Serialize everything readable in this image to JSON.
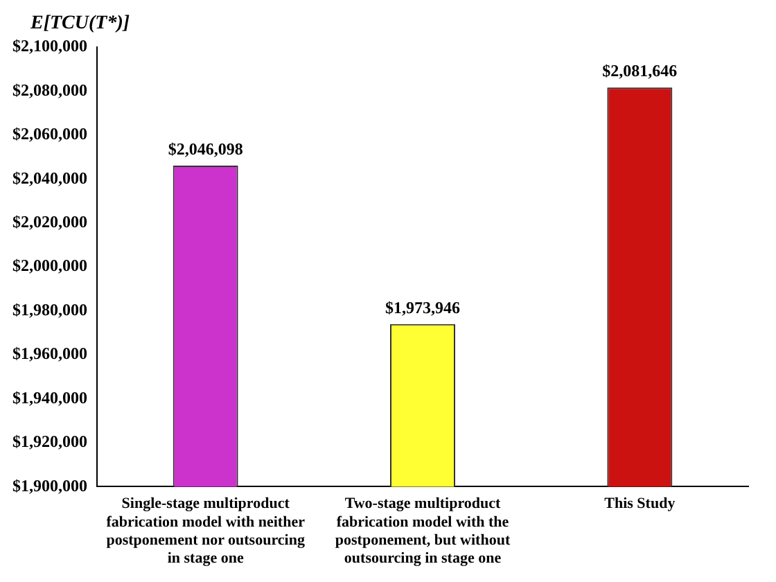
{
  "chart_data": {
    "type": "bar",
    "ylabel": "E[TCU(T*)]",
    "categories": [
      "Single-stage multiproduct fabrication model with neither postponement nor outsourcing in stage one",
      "Two-stage multiproduct fabrication model with the postponement, but without outsourcing in stage one",
      "This Study"
    ],
    "values": [
      2046098,
      1973946,
      2081646
    ],
    "colors": [
      "#cc33cc",
      "#ffff33",
      "#cc1111"
    ],
    "value_labels": [
      "$2,046,098",
      "$1,973,946",
      "$2,081,646"
    ],
    "ylim": [
      1900000,
      2100000
    ],
    "yticks": [
      {
        "value": 1900000,
        "label": "$1,900,000"
      },
      {
        "value": 1920000,
        "label": "$1,920,000"
      },
      {
        "value": 1940000,
        "label": "$1,940,000"
      },
      {
        "value": 1960000,
        "label": "$1,960,000"
      },
      {
        "value": 1980000,
        "label": "$1,980,000"
      },
      {
        "value": 2000000,
        "label": "$2,000,000"
      },
      {
        "value": 2020000,
        "label": "$2,020,000"
      },
      {
        "value": 2040000,
        "label": "$2,040,000"
      },
      {
        "value": 2060000,
        "label": "$2,060,000"
      },
      {
        "value": 2080000,
        "label": "$2,080,000"
      },
      {
        "value": 2100000,
        "label": "$2,100,000"
      }
    ],
    "grid": false,
    "legend": false
  }
}
